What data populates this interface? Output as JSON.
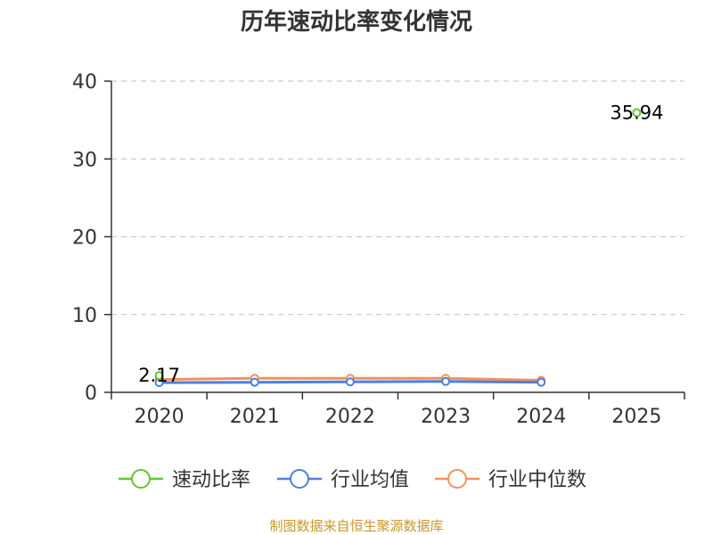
{
  "chart_data": {
    "type": "line",
    "title": "历年速动比率变化情况",
    "categories": [
      "2020",
      "2021",
      "2022",
      "2023",
      "2024",
      "2025"
    ],
    "yticks": [
      "0",
      "10",
      "20",
      "30",
      "40"
    ],
    "ylim": [
      0,
      40
    ],
    "grid": true,
    "legend_position": "bottom",
    "series": [
      {
        "name": "速动比率",
        "color": "#5fc72f",
        "values": [
          2.17,
          null,
          null,
          null,
          null,
          35.94
        ]
      },
      {
        "name": "行业均值",
        "color": "#4d7fe0",
        "values": [
          1.25,
          1.3,
          1.35,
          1.4,
          1.3,
          null
        ]
      },
      {
        "name": "行业中位数",
        "color": "#f5915a",
        "values": [
          1.65,
          1.8,
          1.8,
          1.8,
          1.55,
          null
        ]
      }
    ],
    "data_labels": [
      {
        "series": 0,
        "index": 0,
        "text": "2.17"
      },
      {
        "series": 0,
        "index": 5,
        "text": "35.94"
      }
    ]
  },
  "source_text": "制图数据来自恒生聚源数据库"
}
